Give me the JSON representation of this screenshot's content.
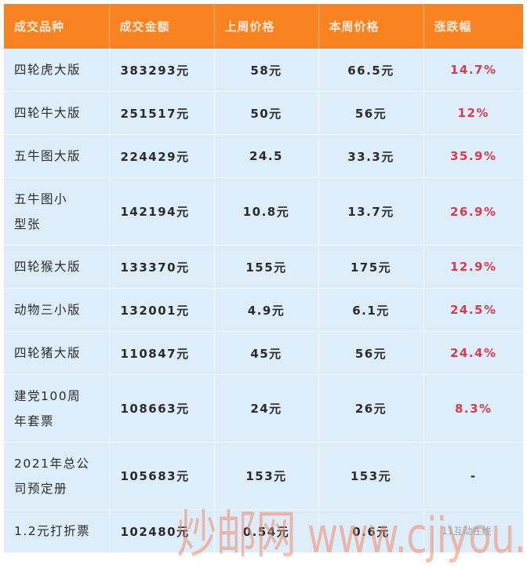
{
  "table": {
    "headers": [
      "成交品种",
      "成交金额",
      "上周价格",
      "本周价格",
      "涨跌幅"
    ],
    "rows": [
      {
        "name": "四轮虎大版",
        "amount": "383293元",
        "last_week": "58元",
        "this_week": "66.5元",
        "change": "14.7%"
      },
      {
        "name": "四轮牛大版",
        "amount": "251517元",
        "last_week": "50元",
        "this_week": "56元",
        "change": "12%"
      },
      {
        "name": "五牛图大版",
        "amount": "224429元",
        "last_week": "24.5",
        "this_week": "33.3元",
        "change": "35.9%"
      },
      {
        "name": "五牛图小型张",
        "amount": "142194元",
        "last_week": "10.8元",
        "this_week": "13.7元",
        "change": "26.9%"
      },
      {
        "name": "四轮猴大版",
        "amount": "133370元",
        "last_week": "155元",
        "this_week": "175元",
        "change": "12.9%"
      },
      {
        "name": "动物三小版",
        "amount": "132001元",
        "last_week": "4.9元",
        "this_week": "6.1元",
        "change": "24.5%"
      },
      {
        "name": "四轮猪大版",
        "amount": "110847元",
        "last_week": "45元",
        "this_week": "56元",
        "change": "24.4%"
      },
      {
        "name": "建党100周年套票",
        "amount": "108663元",
        "last_week": "24元",
        "this_week": "26元",
        "change": "8.3%"
      },
      {
        "name": "2021年总公司预定册",
        "amount": "105683元",
        "last_week": "153元",
        "this_week": "153元",
        "change": "-"
      },
      {
        "name": "1.2元打折票",
        "amount": "102480元",
        "last_week": "0.54元",
        "this_week": "0.6元",
        "change": ""
      }
    ]
  },
  "watermark": {
    "cn": "炒邮网",
    "url": "www.cjiyou.net"
  },
  "source_tag": "11互动在线",
  "colors": {
    "header_bg": "#f98221",
    "cell_bg": "#ddeefa",
    "change_red": "#d83a4e"
  }
}
